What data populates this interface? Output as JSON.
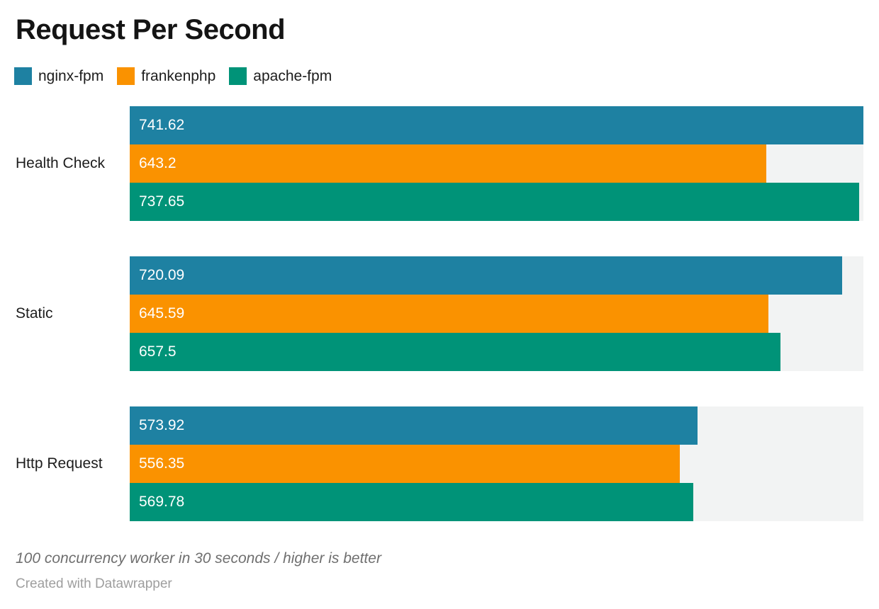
{
  "title": "Request Per Second",
  "chart_data": {
    "type": "bar",
    "orientation": "horizontal",
    "title": "Request Per Second",
    "categories": [
      "Health Check",
      "Static",
      "Http Request"
    ],
    "series": [
      {
        "name": "nginx-fpm",
        "color": "#1e81a2",
        "values": [
          741.62,
          720.09,
          573.92
        ],
        "labels": [
          "741.62",
          "720.09",
          "573.92"
        ]
      },
      {
        "name": "frankenphp",
        "color": "#fa9200",
        "values": [
          643.2,
          645.59,
          556.35
        ],
        "labels": [
          "643.2",
          "645.59",
          "556.35"
        ]
      },
      {
        "name": "apache-fpm",
        "color": "#009378",
        "values": [
          737.65,
          657.5,
          569.78
        ],
        "labels": [
          "737.65",
          "657.5",
          "569.78"
        ]
      }
    ],
    "xmax": 741.62,
    "xmin": 0,
    "grid": false,
    "legend_position": "top",
    "value_labels": "inside-left",
    "track_color": "#f2f3f3",
    "value_label_color": "#ffffff"
  },
  "footer": {
    "note": "100 concurrency worker in 30 seconds / higher is better",
    "attribution": "Created with Datawrapper"
  }
}
